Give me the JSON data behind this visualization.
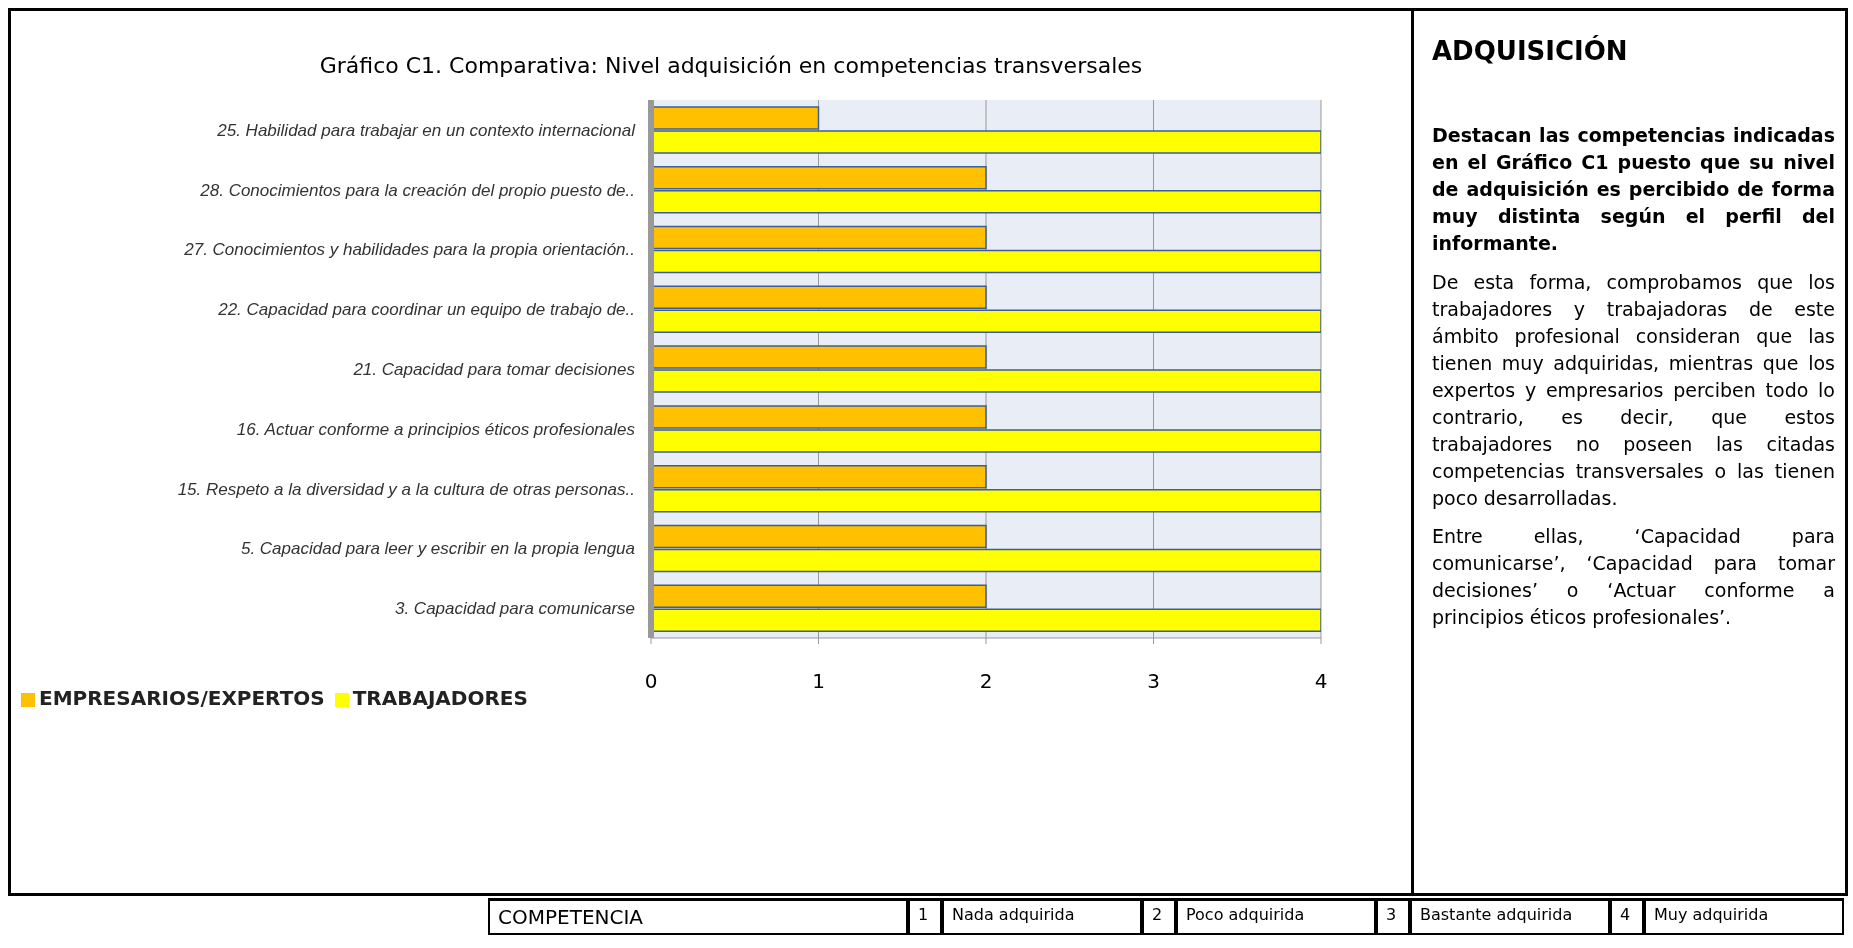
{
  "chart_data": {
    "type": "bar",
    "orientation": "horizontal",
    "title": "Gráfico C1. Comparativa: Nivel adquisición en competencias transversales",
    "categories": [
      "25. Habilidad para trabajar en un contexto internacional",
      "28. Conocimientos para la creación del propio puesto de..",
      "27. Conocimientos y habilidades para la propia orientación..",
      "22. Capacidad para coordinar un equipo de trabajo de..",
      "21. Capacidad para tomar decisiones",
      "16. Actuar conforme a principios éticos profesionales",
      "15. Respeto a la diversidad y a la cultura de otras personas..",
      "5. Capacidad para leer y escribir en la propia lengua",
      "3. Capacidad para comunicarse"
    ],
    "series": [
      {
        "name": "EMPRESARIOS/EXPERTOS",
        "color": "#ffc000",
        "values": [
          1,
          2,
          2,
          2,
          2,
          2,
          2,
          2,
          2
        ]
      },
      {
        "name": "TRABAJADORES",
        "color": "#ffff00",
        "values": [
          4,
          4,
          4,
          4,
          4,
          4,
          4,
          4,
          4
        ]
      }
    ],
    "xlim": [
      0,
      4
    ],
    "xticks": [
      0,
      1,
      2,
      3,
      4
    ],
    "grid": "x",
    "legend": "bottom left",
    "annotations": [
      "ADQUISICIÓN",
      "Destacan las competencias indicadas en el Gráfico C1 puesto que su nivel de adquisición es percibido de forma muy distinta según el perfil del informante.",
      "De esta forma, comprobamos que los trabajadores y trabajadoras de este ámbito profesional consideran que las tienen muy adquiridas, mientras que los expertos y empresarios perciben todo lo contrario, es decir, que estos trabajadores no poseen las citadas competencias transversales o las tienen poco desarrolladas.",
      "Entre ellas, ‘Capacidad para comunicarse’, ‘Capacidad para tomar decisiones’ o ‘Actuar conforme a principios éticos profesionales’.",
      "COMPETENCIA",
      "1",
      "Nada adquirida",
      "2",
      "Poco adquirida",
      "3",
      "Bastante adquirida",
      "4",
      "Muy adquirida"
    ]
  }
}
